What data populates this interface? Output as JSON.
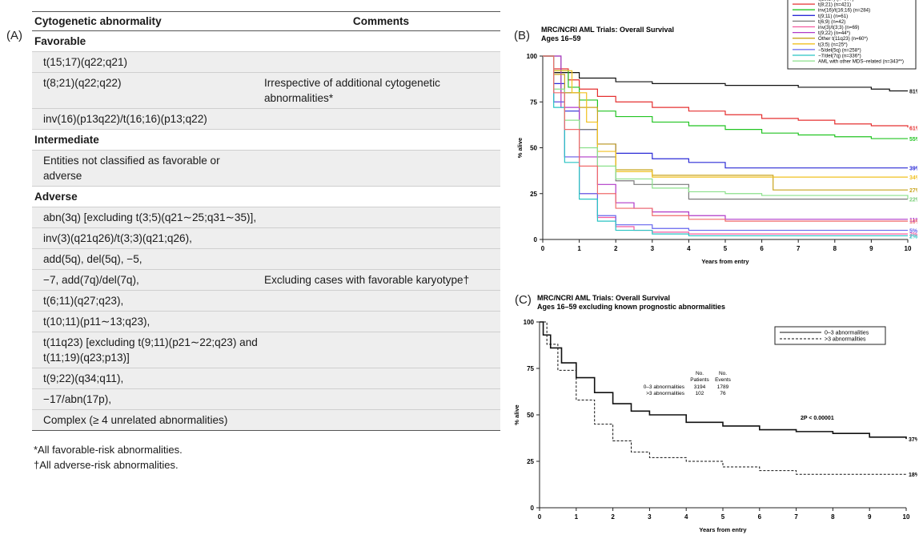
{
  "panel_labels": {
    "a": "(A)",
    "b": "(B)",
    "c": "(C)"
  },
  "table": {
    "headers": {
      "abnormality": "Cytogenetic abnormality",
      "comments": "Comments"
    },
    "rows": [
      {
        "type": "category",
        "abnormality": "Favorable"
      },
      {
        "type": "entry",
        "abnormality": "t(15;17)(q22;q21)",
        "comment": ""
      },
      {
        "type": "entry",
        "abnormality": "t(8;21)(q22;q22)",
        "comment": "Irrespective of additional cytogenetic abnormalities*"
      },
      {
        "type": "entry",
        "abnormality": "inv(16)(p13q22)/t(16;16)(p13;q22)",
        "comment": ""
      },
      {
        "type": "category",
        "abnormality": "Intermediate"
      },
      {
        "type": "entry",
        "abnormality": "Entities not classified as favorable or adverse",
        "comment": ""
      },
      {
        "type": "category",
        "abnormality": "Adverse"
      },
      {
        "type": "entry",
        "abnormality": "abn(3q) [excluding t(3;5)(q21∼25;q31∼35)],",
        "comment": ""
      },
      {
        "type": "entry",
        "abnormality": "inv(3)(q21q26)/t(3;3)(q21;q26),",
        "comment": ""
      },
      {
        "type": "entry",
        "abnormality": "add(5q), del(5q), −5,",
        "comment": ""
      },
      {
        "type": "entry",
        "abnormality": "−7, add(7q)/del(7q),",
        "comment": "Excluding cases with favorable karyotype†"
      },
      {
        "type": "entry",
        "abnormality": "t(6;11)(q27;q23),",
        "comment": ""
      },
      {
        "type": "entry",
        "abnormality": "t(10;11)(p11∼13;q23),",
        "comment": ""
      },
      {
        "type": "entry",
        "abnormality": "t(11q23) [excluding t(9;11)(p21∼22;q23) and t(11;19)(q23;p13)]",
        "comment": ""
      },
      {
        "type": "entry",
        "abnormality": "t(9;22)(q34;q11),",
        "comment": ""
      },
      {
        "type": "entry",
        "abnormality": "−17/abn(17p),",
        "comment": ""
      },
      {
        "type": "entry",
        "abnormality": "Complex (≥ 4 unrelated abnormalities)",
        "comment": ""
      }
    ],
    "footnotes": [
      "*All favorable-risk abnormalities.",
      "†All adverse-risk abnormalities."
    ]
  },
  "chart_data": [
    {
      "type": "line",
      "title": "MRC/NCRI AML Trials: Overall Survival",
      "subtitle": "Ages 16–59",
      "xlabel": "Years from entry",
      "ylabel": "% alive",
      "xlim": [
        0,
        10
      ],
      "ylim": [
        0,
        100
      ],
      "xticks": [
        0,
        1,
        2,
        3,
        4,
        5,
        6,
        7,
        8,
        9,
        10
      ],
      "yticks": [
        0,
        25,
        50,
        75,
        100
      ],
      "legend_position": "top-right",
      "series": [
        {
          "name": "t(15;17) (n=607)",
          "color": "#111111",
          "end_label": "81%",
          "x": [
            0,
            0.3,
            1,
            2,
            3,
            5,
            7,
            8,
            9,
            9.5,
            10
          ],
          "y": [
            100,
            91,
            88,
            86,
            85,
            84,
            83,
            83,
            82,
            81,
            81
          ]
        },
        {
          "name": "t(8;21) (n=421)",
          "color": "#e53030",
          "end_label": "61%",
          "x": [
            0,
            0.3,
            0.7,
            1,
            1.5,
            2,
            3,
            4,
            5,
            6,
            7,
            8,
            9,
            10
          ],
          "y": [
            100,
            93,
            87,
            82,
            78,
            75,
            72,
            70,
            68,
            66,
            65,
            63,
            62,
            61
          ]
        },
        {
          "name": "inv(16)/t(16;16) (n=284)",
          "color": "#22c422",
          "end_label": "55%",
          "x": [
            0,
            0.3,
            0.7,
            1,
            1.5,
            2,
            3,
            4,
            5,
            6,
            7,
            8,
            9,
            10
          ],
          "y": [
            100,
            92,
            83,
            76,
            70,
            67,
            64,
            62,
            60,
            58,
            57,
            56,
            55,
            55
          ]
        },
        {
          "name": "t(9;11) (n=61)",
          "color": "#2b2bd6",
          "end_label": "39%",
          "x": [
            0,
            0.3,
            0.6,
            1,
            1.5,
            2,
            3,
            4,
            5,
            6,
            7,
            10
          ],
          "y": [
            100,
            85,
            70,
            60,
            52,
            47,
            44,
            42,
            39,
            39,
            39,
            39
          ]
        },
        {
          "name": "t(6;9) (n=42)",
          "color": "#7a7a7a",
          "end_label": "22%",
          "x": [
            0,
            0.5,
            1,
            1.5,
            2,
            2.5,
            3,
            4,
            10
          ],
          "y": [
            100,
            80,
            60,
            45,
            32,
            30,
            30,
            22,
            22
          ]
        },
        {
          "name": "inv(3)/t(3;3) (n=69)",
          "color": "#f45ba0",
          "end_label": "3%",
          "x": [
            0,
            0.3,
            0.6,
            1,
            1.5,
            2,
            2.5,
            3,
            4,
            10
          ],
          "y": [
            100,
            75,
            45,
            25,
            12,
            7,
            5,
            4,
            3,
            3
          ]
        },
        {
          "name": "t(9;22) (n=44*)",
          "color": "#b03ac8",
          "end_label": "11%",
          "x": [
            0,
            0.5,
            1,
            1.5,
            2,
            2.5,
            3,
            4,
            5,
            7,
            10
          ],
          "y": [
            100,
            72,
            45,
            30,
            20,
            17,
            15,
            13,
            11,
            11,
            11
          ]
        },
        {
          "name": "Other t(11q23) (n=60*)",
          "color": "#c8a41c",
          "end_label": "27%",
          "x": [
            0,
            0.3,
            0.6,
            1,
            1.5,
            2,
            3,
            4,
            5,
            6.3,
            6.31,
            10
          ],
          "y": [
            100,
            90,
            80,
            72,
            52,
            38,
            35,
            35,
            35,
            35,
            27,
            27
          ]
        },
        {
          "name": "t(3;5) (n=25*)",
          "color": "#f0c020",
          "end_label": "34%",
          "x": [
            0,
            0.3,
            0.8,
            1.2,
            1.5,
            2,
            3,
            4,
            10
          ],
          "y": [
            100,
            92,
            80,
            64,
            48,
            37,
            34,
            34,
            34
          ]
        },
        {
          "name": "−5/del(5q) (n=258*)",
          "color": "#6666ee",
          "end_label": "5%",
          "x": [
            0,
            0.3,
            0.6,
            1,
            1.5,
            2,
            3,
            4,
            5,
            10
          ],
          "y": [
            100,
            75,
            45,
            25,
            13,
            8,
            6,
            5,
            5,
            5
          ]
        },
        {
          "name": "−7/del(7q) (n=336*)",
          "color": "#29c4c4",
          "end_label": "2%",
          "x": [
            0,
            0.3,
            0.6,
            1,
            1.5,
            2,
            3,
            4,
            10
          ],
          "y": [
            100,
            72,
            42,
            22,
            10,
            5,
            3,
            2,
            2
          ]
        },
        {
          "name": "AML with other MDS–related (n=343**)",
          "color": "#8be08b",
          "end_label": "22%",
          "x": [
            0,
            0.3,
            0.6,
            1,
            1.5,
            2,
            3,
            4,
            5,
            6,
            10
          ],
          "y": [
            100,
            82,
            65,
            50,
            40,
            33,
            28,
            26,
            25,
            24,
            22
          ]
        },
        {
          "name": "",
          "color": "#f06b6b",
          "end_label": "10%",
          "x": [
            0,
            0.3,
            0.6,
            1,
            1.5,
            2,
            3,
            4,
            5,
            6,
            10
          ],
          "y": [
            100,
            80,
            60,
            40,
            25,
            17,
            13,
            11,
            10,
            10,
            10
          ]
        }
      ]
    },
    {
      "type": "line",
      "title": "MRC/NCRI AML Trials: Overall Survival",
      "subtitle": "Ages 16–59 excluding known prognostic abnormalities",
      "xlabel": "Years from entry",
      "ylabel": "% alive",
      "xlim": [
        0,
        10
      ],
      "ylim": [
        0,
        100
      ],
      "xticks": [
        0,
        1,
        2,
        3,
        4,
        5,
        6,
        7,
        8,
        9,
        10
      ],
      "yticks": [
        0,
        25,
        50,
        75,
        100
      ],
      "legend_position": "top-right",
      "annotation": "2P < 0.00001",
      "stats_table": {
        "headers": [
          "No. Patients",
          "No. Events"
        ],
        "rows": [
          {
            "label": "0–3 abnormalities",
            "patients": "3194",
            "events": "1789"
          },
          {
            "label": ">3 abnormalities",
            "patients": "102",
            "events": "76"
          }
        ]
      },
      "series": [
        {
          "name": "0–3 abnormalities",
          "style": "solid",
          "end_label": "37%",
          "x": [
            0,
            0.1,
            0.3,
            0.6,
            1,
            1.5,
            2,
            2.5,
            3,
            4,
            5,
            6,
            7,
            8,
            9,
            10
          ],
          "y": [
            100,
            93,
            86,
            78,
            70,
            62,
            56,
            52,
            50,
            46,
            44,
            42,
            41,
            40,
            38,
            37
          ]
        },
        {
          "name": ">3 abnormalities",
          "style": "dashed",
          "end_label": "18%",
          "x": [
            0,
            0.2,
            0.5,
            1,
            1.5,
            2,
            2.5,
            3,
            4,
            5,
            6,
            7,
            8,
            9,
            10
          ],
          "y": [
            100,
            88,
            74,
            58,
            45,
            36,
            30,
            27,
            25,
            22,
            20,
            18,
            18,
            18,
            18
          ]
        }
      ]
    }
  ]
}
